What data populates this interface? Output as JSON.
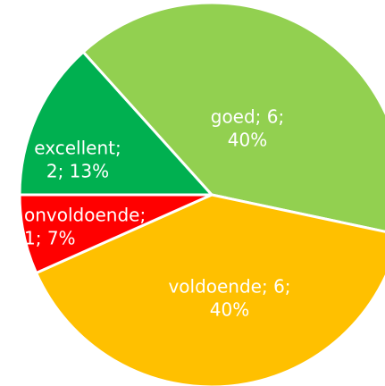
{
  "chart_data": {
    "type": "pie",
    "values": [
      6,
      6,
      1,
      2
    ],
    "value_labels": [
      [
        "goed; 6;",
        "40%"
      ],
      [
        "voldoende; 6;",
        "40%"
      ],
      [
        "onvoldoende;",
        "1; 7%"
      ],
      [
        "excellent;",
        "2; 13%"
      ]
    ],
    "colors": [
      "#92d050",
      "#ffc000",
      "#ff0000",
      "#00b050"
    ]
  }
}
